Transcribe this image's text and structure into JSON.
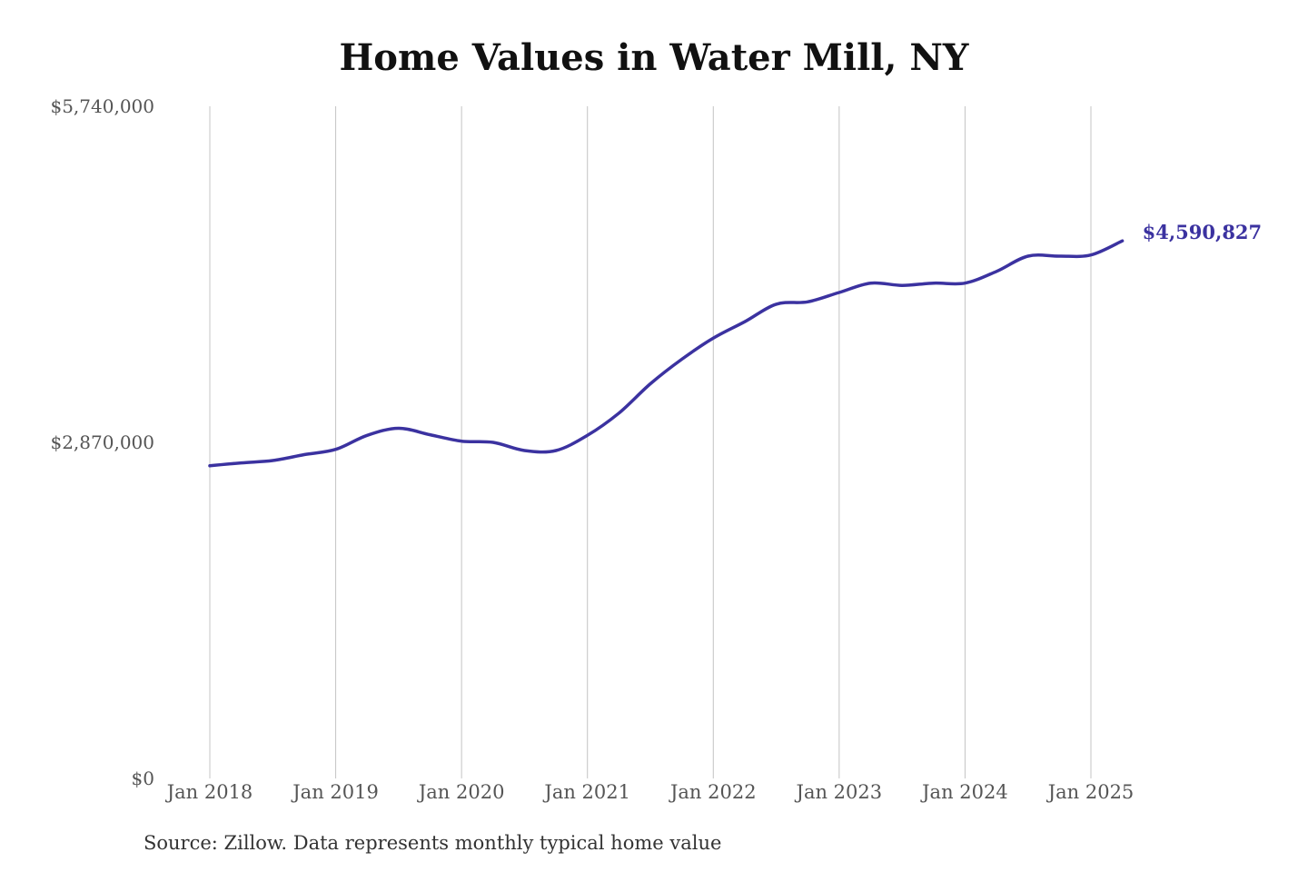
{
  "chart_data": {
    "type": "line",
    "title": "Home Values in Water Mill, NY",
    "source": "Source: Zillow. Data represents monthly typical home value",
    "xlabel": "",
    "ylabel": "",
    "ylim": [
      0,
      5740000
    ],
    "y_ticks": [
      {
        "value": 0,
        "label": "$0"
      },
      {
        "value": 2870000,
        "label": "$2,870,000"
      },
      {
        "value": 5740000,
        "label": "$5,740,000"
      }
    ],
    "x_ticks": [
      {
        "date": "2018-01",
        "label": "Jan 2018"
      },
      {
        "date": "2019-01",
        "label": "Jan 2019"
      },
      {
        "date": "2020-01",
        "label": "Jan 2020"
      },
      {
        "date": "2021-01",
        "label": "Jan 2021"
      },
      {
        "date": "2022-01",
        "label": "Jan 2022"
      },
      {
        "date": "2023-01",
        "label": "Jan 2023"
      },
      {
        "date": "2024-01",
        "label": "Jan 2024"
      },
      {
        "date": "2025-01",
        "label": "Jan 2025"
      }
    ],
    "grid": {
      "vertical": true,
      "horizontal": false
    },
    "line_color": "#3b32a0",
    "end_label": "$4,590,827",
    "series": [
      {
        "x": [
          "2018-01",
          "2018-04",
          "2018-07",
          "2018-10",
          "2019-01",
          "2019-04",
          "2019-07",
          "2019-10",
          "2020-01",
          "2020-04",
          "2020-07",
          "2020-10",
          "2021-01",
          "2021-04",
          "2021-07",
          "2021-10",
          "2022-01",
          "2022-04",
          "2022-07",
          "2022-10",
          "2023-01",
          "2023-04",
          "2023-07",
          "2023-10",
          "2024-01",
          "2024-04",
          "2024-07",
          "2024-10",
          "2025-01",
          "2025-04"
        ],
        "values": [
          2670000,
          2695000,
          2715000,
          2765000,
          2810000,
          2930000,
          2990000,
          2935000,
          2880000,
          2870000,
          2800000,
          2800000,
          2930000,
          3120000,
          3370000,
          3580000,
          3760000,
          3900000,
          4050000,
          4070000,
          4150000,
          4230000,
          4210000,
          4230000,
          4230000,
          4330000,
          4460000,
          4460000,
          4470000,
          4590827
        ]
      }
    ]
  }
}
